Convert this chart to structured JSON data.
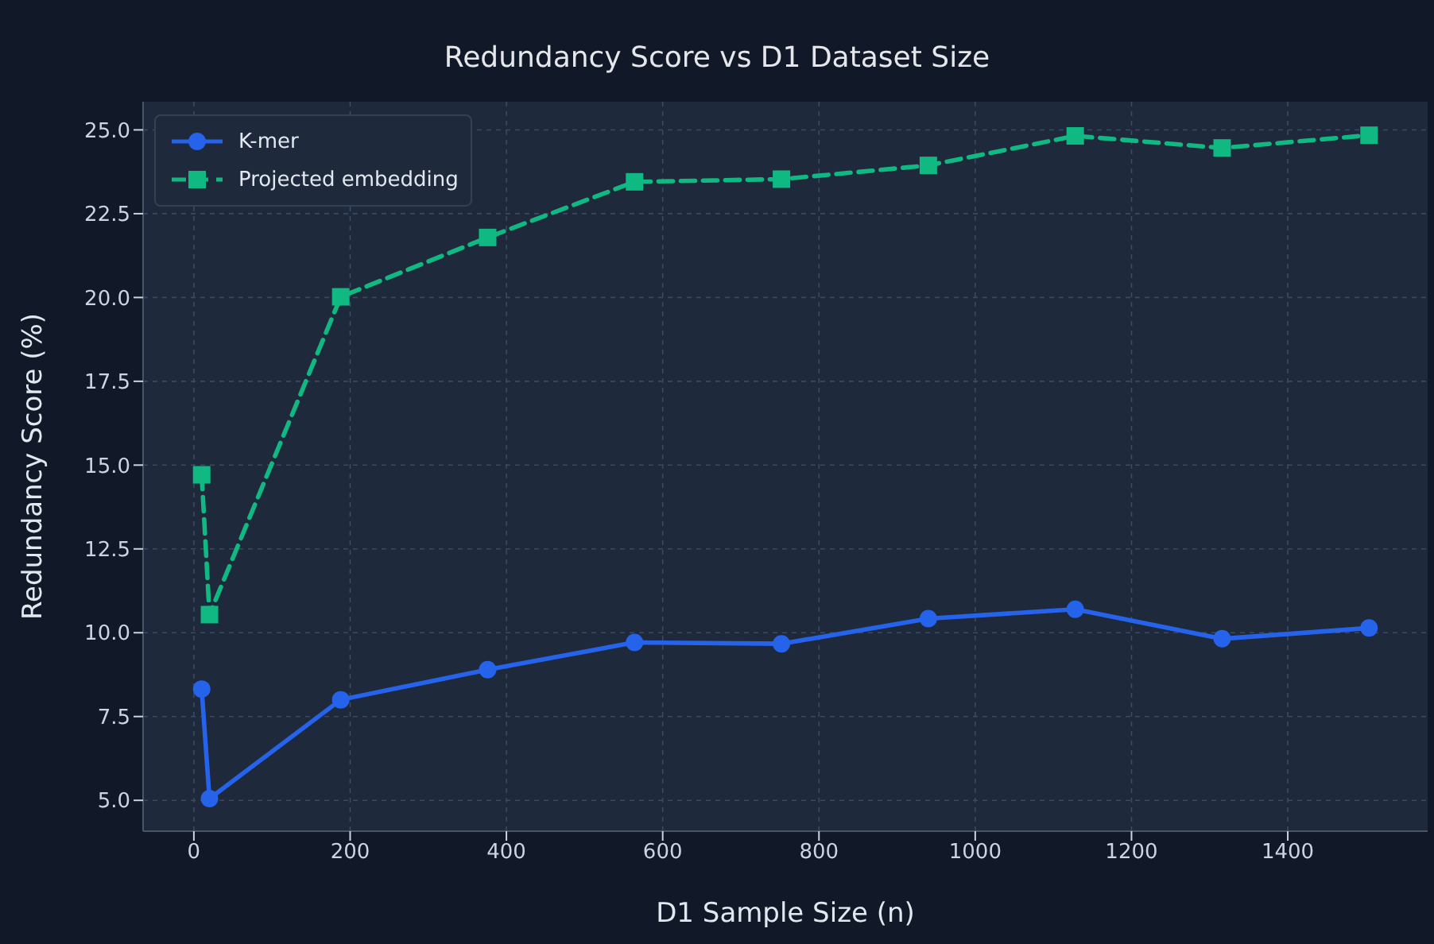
{
  "chart_data": {
    "type": "line",
    "title": "Redundancy Score vs D1 Dataset Size",
    "xlabel": "D1 Sample Size (n)",
    "ylabel": "Redundancy Score (%)",
    "x": [
      10,
      20,
      188,
      376,
      564,
      752,
      940,
      1128,
      1316,
      1504
    ],
    "series": [
      {
        "name": "K-mer",
        "color": "#2563eb",
        "marker": "circle",
        "line_style": "solid",
        "values": [
          8.32,
          5.05,
          8.0,
          8.9,
          9.71,
          9.67,
          10.42,
          10.7,
          9.82,
          10.14
        ]
      },
      {
        "name": "Projected embedding",
        "color": "#10b981",
        "marker": "square",
        "line_style": "dashed",
        "values": [
          14.71,
          10.54,
          20.02,
          21.79,
          23.45,
          23.53,
          23.94,
          24.82,
          24.46,
          24.84
        ]
      }
    ],
    "xlim": [
      -65,
      1579
    ],
    "xticks": [
      0,
      200,
      400,
      600,
      800,
      1000,
      1200,
      1400
    ],
    "ylim": [
      4.08,
      25.84
    ],
    "yticks": [
      {
        "value": 5,
        "label": "5.0"
      },
      7.5,
      {
        "value": 10,
        "label": "10.0"
      },
      12.5,
      {
        "value": 15,
        "label": "15.0"
      },
      17.5,
      {
        "value": 20,
        "label": "20.0"
      },
      22.5,
      {
        "value": 25,
        "label": "25.0"
      }
    ],
    "grid": true,
    "legend": "top left"
  }
}
